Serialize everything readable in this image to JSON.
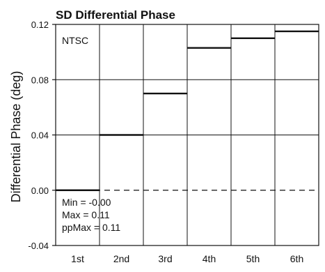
{
  "chart_data": {
    "type": "bar",
    "title": "SD Differential Phase",
    "xlabel": "",
    "ylabel": "Differential Phase (deg)",
    "categories": [
      "1st",
      "2nd",
      "3rd",
      "4th",
      "5th",
      "6th"
    ],
    "values": [
      0.0,
      0.04,
      0.07,
      0.103,
      0.11,
      0.115
    ],
    "ylim": [
      -0.04,
      0.12
    ],
    "yticks": [
      -0.04,
      0.0,
      0.04,
      0.08,
      0.12
    ],
    "ytick_labels": [
      "-0.04",
      "0.00",
      "0.04",
      "0.08",
      "0.12"
    ],
    "reference_line": {
      "y": 0.0,
      "style": "dashed"
    },
    "grid": true,
    "legend": "none",
    "standard_label": "NTSC",
    "stats": {
      "min_line": "Min = -0.00",
      "max_line": "Max = 0.11",
      "ppmax_line": "ppMax = 0.11"
    },
    "colors": {
      "bar_line": "#111111",
      "frame": "#111111",
      "grid": "#111111",
      "background": "#ffffff"
    }
  }
}
